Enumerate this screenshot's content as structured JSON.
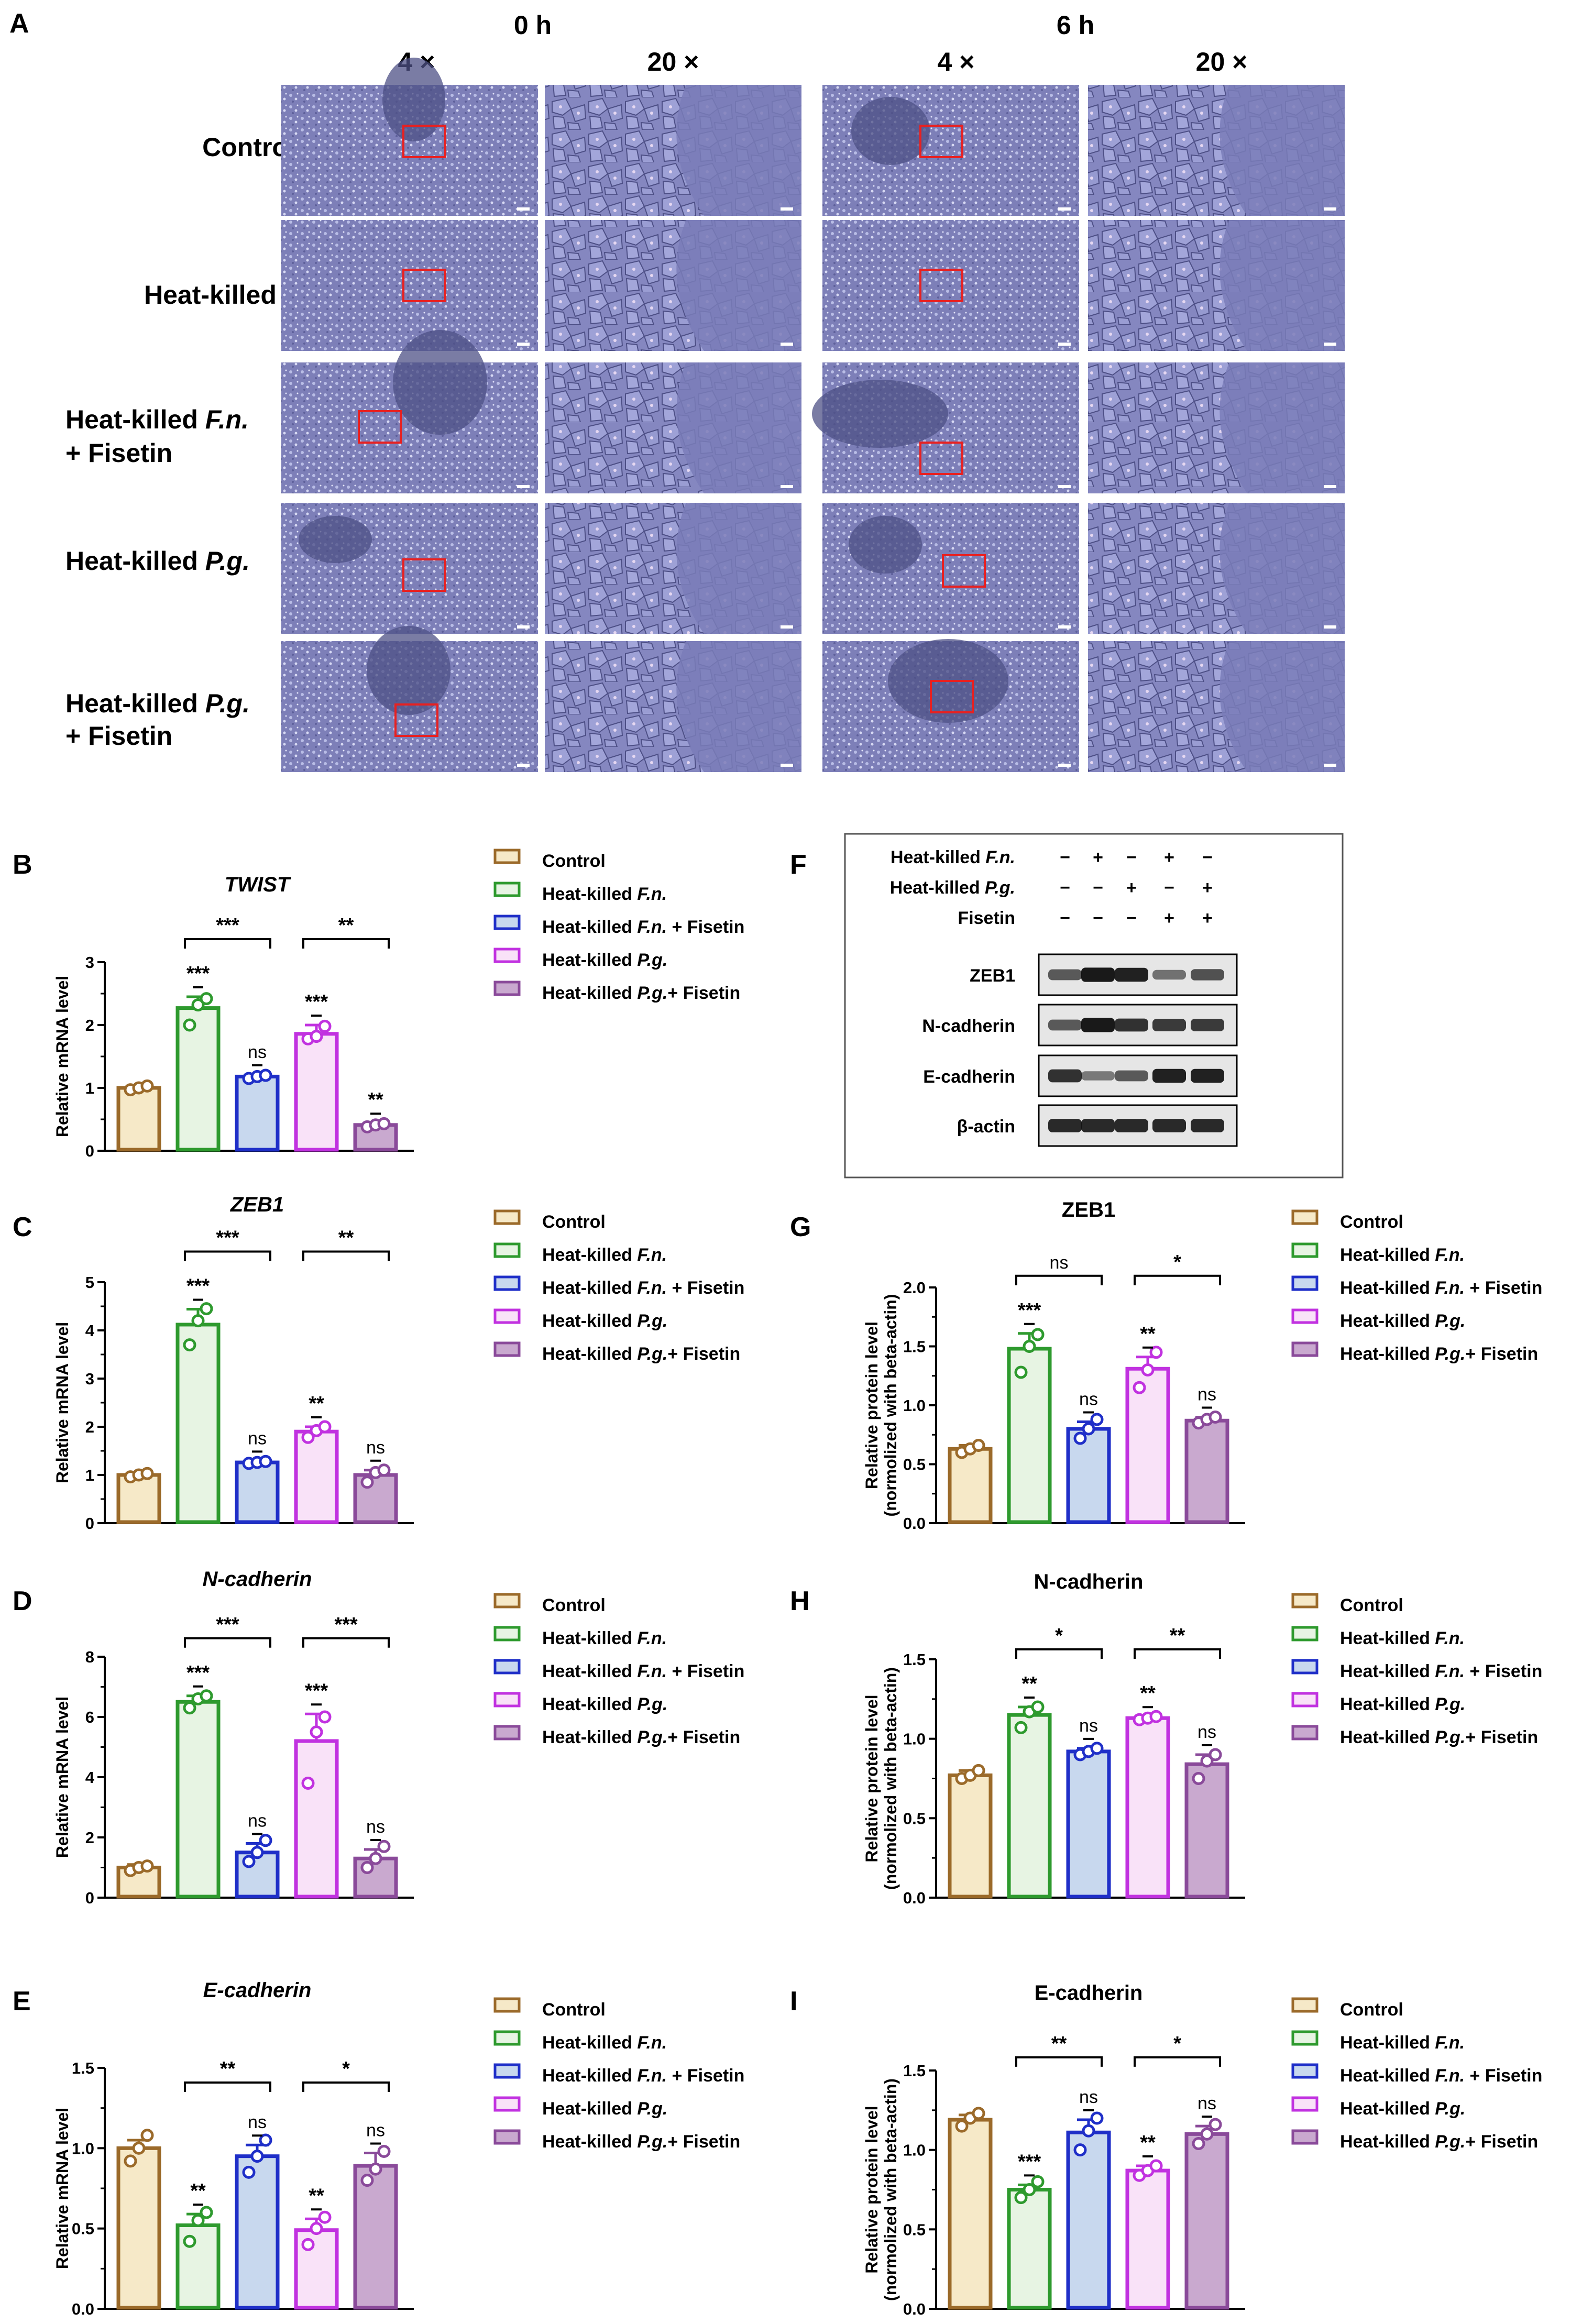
{
  "panel_a": {
    "letter": "A",
    "time_headers": [
      "0 h",
      "6 h"
    ],
    "mag_headers": [
      "4 ×",
      "20 ×",
      "4 ×",
      "20 ×"
    ],
    "rows": [
      [
        "Control"
      ],
      [
        "Heat-killed F.n."
      ],
      [
        "Heat-killed F.n.",
        "+ Fisetin"
      ],
      [
        "Heat-killed P.g."
      ],
      [
        "Heat-killed P.g.",
        "+ Fisetin"
      ]
    ]
  },
  "legend": [
    "Control",
    "Heat-killed F.n.",
    "Heat-killed F.n. + Fisetin",
    "Heat-killed P.g.",
    "Heat-killed P.g.+ Fisetin"
  ],
  "colors": {
    "fills": [
      "#f6e9c8",
      "#e7f4e3",
      "#c8d8ee",
      "#f9e2f8",
      "#c9a9cf"
    ],
    "strokes": [
      "#9b6a2a",
      "#2e9a2e",
      "#1f2fc8",
      "#c132e0",
      "#8a4a9a"
    ]
  },
  "western_blot": {
    "letter": "F",
    "conditions": [
      "Heat-killed F.n.",
      "Heat-killed P.g.",
      "Fisetin"
    ],
    "signs": [
      [
        "−",
        "+",
        "−",
        "+",
        "−"
      ],
      [
        "−",
        "−",
        "+",
        "−",
        "+"
      ],
      [
        "−",
        "−",
        "−",
        "+",
        "+"
      ]
    ],
    "bands": [
      "ZEB1",
      "N-cadherin",
      "E-cadherin",
      "β-actin"
    ],
    "intensities": [
      [
        0.55,
        0.95,
        0.9,
        0.4,
        0.6
      ],
      [
        0.55,
        0.95,
        0.8,
        0.75,
        0.75
      ],
      [
        0.8,
        0.35,
        0.55,
        0.9,
        0.9
      ],
      [
        0.85,
        0.85,
        0.85,
        0.85,
        0.85
      ]
    ]
  },
  "chart_data": [
    {
      "id": "B",
      "type": "bar",
      "title": "TWIST",
      "italic": true,
      "categories": [
        "Control",
        "Heat-killed F.n.",
        "Heat-killed F.n. + Fisetin",
        "Heat-killed P.g.",
        "Heat-killed P.g.+ Fisetin"
      ],
      "values": [
        1.0,
        2.27,
        1.18,
        1.86,
        0.41
      ],
      "errors": [
        0.03,
        0.18,
        0.03,
        0.14,
        0.03
      ],
      "points": [
        [
          0.97,
          1.0,
          1.03
        ],
        [
          2.0,
          2.32,
          2.42
        ],
        [
          1.15,
          1.18,
          1.2
        ],
        [
          1.78,
          1.82,
          1.98
        ],
        [
          0.38,
          0.41,
          0.43
        ]
      ],
      "ylabel": "Relative  mRNA level",
      "ylim": [
        0,
        3
      ],
      "yticks": [
        "0",
        "1",
        "2",
        "3"
      ],
      "sig": [
        "",
        "***",
        "ns",
        "***",
        "**"
      ],
      "brackets": [
        [
          1,
          2,
          "***"
        ],
        [
          3,
          4,
          "**"
        ]
      ]
    },
    {
      "id": "C",
      "type": "bar",
      "title": "ZEB1",
      "italic": true,
      "categories": [
        "Control",
        "Heat-killed F.n.",
        "Heat-killed F.n. + Fisetin",
        "Heat-killed P.g.",
        "Heat-killed P.g.+ Fisetin"
      ],
      "values": [
        1.0,
        4.12,
        1.26,
        1.9,
        1.0
      ],
      "errors": [
        0.03,
        0.32,
        0.03,
        0.1,
        0.1
      ],
      "points": [
        [
          0.96,
          1.0,
          1.03
        ],
        [
          3.7,
          4.2,
          4.45
        ],
        [
          1.24,
          1.26,
          1.28
        ],
        [
          1.78,
          1.92,
          2.0
        ],
        [
          0.85,
          1.05,
          1.1
        ]
      ],
      "ylabel": "Relative  mRNA level",
      "ylim": [
        0,
        5
      ],
      "yticks": [
        "0",
        "1",
        "2",
        "3",
        "4",
        "5"
      ],
      "sig": [
        "",
        "***",
        "ns",
        "**",
        "ns"
      ],
      "brackets": [
        [
          1,
          2,
          "***"
        ],
        [
          3,
          4,
          "**"
        ]
      ]
    },
    {
      "id": "D",
      "type": "bar",
      "title": "N-cadherin",
      "italic": true,
      "categories": [
        "Control",
        "Heat-killed F.n.",
        "Heat-killed F.n. + Fisetin",
        "Heat-killed P.g.",
        "Heat-killed P.g.+ Fisetin"
      ],
      "values": [
        1.0,
        6.5,
        1.5,
        5.2,
        1.3
      ],
      "errors": [
        0.1,
        0.2,
        0.3,
        0.9,
        0.3
      ],
      "points": [
        [
          0.9,
          1.0,
          1.05
        ],
        [
          6.3,
          6.6,
          6.7
        ],
        [
          1.2,
          1.5,
          1.9
        ],
        [
          3.8,
          5.5,
          6.0
        ],
        [
          1.0,
          1.3,
          1.7
        ]
      ],
      "ylabel": "Relative  mRNA level",
      "ylim": [
        0,
        8
      ],
      "yticks": [
        "0",
        "2",
        "4",
        "6",
        "8"
      ],
      "sig": [
        "",
        "***",
        "ns",
        "***",
        "ns"
      ],
      "brackets": [
        [
          1,
          2,
          "***"
        ],
        [
          3,
          4,
          "***"
        ]
      ]
    },
    {
      "id": "E",
      "type": "bar",
      "title": "E-cadherin",
      "italic": true,
      "categories": [
        "Control",
        "Heat-killed F.n.",
        "Heat-killed F.n. + Fisetin",
        "Heat-killed P.g.",
        "Heat-killed P.g.+ Fisetin"
      ],
      "values": [
        1.0,
        0.52,
        0.95,
        0.49,
        0.89
      ],
      "errors": [
        0.05,
        0.07,
        0.07,
        0.07,
        0.08
      ],
      "points": [
        [
          0.92,
          1.0,
          1.08
        ],
        [
          0.42,
          0.55,
          0.6
        ],
        [
          0.85,
          0.95,
          1.05
        ],
        [
          0.4,
          0.5,
          0.57
        ],
        [
          0.8,
          0.87,
          0.98
        ]
      ],
      "ylabel": "Relative  mRNA level",
      "ylim": [
        0,
        1.5
      ],
      "yticks": [
        "0.0",
        "0.5",
        "1.0",
        "1.5"
      ],
      "sig": [
        "",
        "**",
        "ns",
        "**",
        "ns"
      ],
      "brackets": [
        [
          1,
          2,
          "**"
        ],
        [
          3,
          4,
          "*"
        ]
      ]
    },
    {
      "id": "G",
      "type": "bar",
      "title": "ZEB1",
      "italic": false,
      "categories": [
        "Control",
        "Heat-killed F.n.",
        "Heat-killed F.n. + Fisetin",
        "Heat-killed P.g.",
        "Heat-killed P.g.+ Fisetin"
      ],
      "values": [
        0.63,
        1.48,
        0.8,
        1.31,
        0.87
      ],
      "errors": [
        0.03,
        0.13,
        0.06,
        0.1,
        0.03
      ],
      "points": [
        [
          0.6,
          0.63,
          0.66
        ],
        [
          1.28,
          1.5,
          1.6
        ],
        [
          0.72,
          0.8,
          0.88
        ],
        [
          1.15,
          1.3,
          1.45
        ],
        [
          0.85,
          0.88,
          0.9
        ]
      ],
      "ylabel": "Relative protein level",
      "ylabel2": "(normolized with beta-actin)",
      "ylim": [
        0,
        2
      ],
      "yticks": [
        "0.0",
        "0.5",
        "1.0",
        "1.5",
        "2.0"
      ],
      "sig": [
        "",
        "***",
        "ns",
        "**",
        "ns"
      ],
      "brackets": [
        [
          1,
          2,
          "ns"
        ],
        [
          3,
          4,
          "*"
        ]
      ]
    },
    {
      "id": "H",
      "type": "bar",
      "title": "N-cadherin",
      "italic": false,
      "categories": [
        "Control",
        "Heat-killed F.n.",
        "Heat-killed F.n. + Fisetin",
        "Heat-killed P.g.",
        "Heat-killed P.g.+ Fisetin"
      ],
      "values": [
        0.77,
        1.15,
        0.92,
        1.13,
        0.84
      ],
      "errors": [
        0.03,
        0.05,
        0.02,
        0.01,
        0.06
      ],
      "points": [
        [
          0.75,
          0.77,
          0.8
        ],
        [
          1.07,
          1.17,
          1.2
        ],
        [
          0.9,
          0.92,
          0.94
        ],
        [
          1.12,
          1.13,
          1.14
        ],
        [
          0.75,
          0.86,
          0.9
        ]
      ],
      "ylabel": "Relative protein level",
      "ylabel2": "(normolized with beta-actin)",
      "ylim": [
        0,
        1.5
      ],
      "yticks": [
        "0.0",
        "0.5",
        "1.0",
        "1.5"
      ],
      "sig": [
        "",
        "**",
        "ns",
        "**",
        "ns"
      ],
      "brackets": [
        [
          1,
          2,
          "*"
        ],
        [
          3,
          4,
          "**"
        ]
      ]
    },
    {
      "id": "I",
      "type": "bar",
      "title": "E-cadherin",
      "italic": false,
      "categories": [
        "Control",
        "Heat-killed F.n.",
        "Heat-killed F.n. + Fisetin",
        "Heat-killed P.g.",
        "Heat-killed P.g.+ Fisetin"
      ],
      "values": [
        1.19,
        0.75,
        1.11,
        0.87,
        1.1
      ],
      "errors": [
        0.03,
        0.03,
        0.08,
        0.03,
        0.05
      ],
      "points": [
        [
          1.15,
          1.2,
          1.23
        ],
        [
          0.7,
          0.75,
          0.8
        ],
        [
          1.0,
          1.12,
          1.2
        ],
        [
          0.84,
          0.87,
          0.9
        ],
        [
          1.04,
          1.1,
          1.16
        ]
      ],
      "ylabel": "Relative protein level",
      "ylabel2": "(normolized with beta-actin)",
      "ylim": [
        0,
        1.5
      ],
      "yticks": [
        "0.0",
        "0.5",
        "1.0",
        "1.5"
      ],
      "sig": [
        "",
        "***",
        "ns",
        "**",
        "ns"
      ],
      "brackets": [
        [
          1,
          2,
          "**"
        ],
        [
          3,
          4,
          "*"
        ]
      ]
    }
  ]
}
